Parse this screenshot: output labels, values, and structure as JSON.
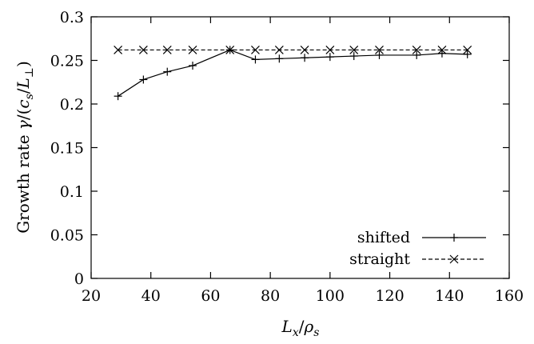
{
  "chart_data": {
    "type": "line",
    "xlabel": "L_x/ρ_s",
    "ylabel": "Growth rate γ/(c_s/L_⊥)",
    "xlim": [
      20,
      160
    ],
    "ylim": [
      0,
      0.3
    ],
    "xticks": [
      20,
      40,
      60,
      80,
      100,
      120,
      140,
      160
    ],
    "yticks": [
      0,
      0.05,
      0.1,
      0.15,
      0.2,
      0.25,
      0.3
    ],
    "xtick_labels": [
      "20",
      "40",
      "60",
      "80",
      "100",
      "120",
      "140",
      "160"
    ],
    "ytick_labels": [
      "0",
      "0.05",
      "0.1",
      "0.15",
      "0.2",
      "0.25",
      "0.3"
    ],
    "grid": false,
    "legend_position": "bottom-right",
    "series": [
      {
        "name": "shifted",
        "style": "solid",
        "marker": "plus",
        "x": [
          29,
          37.5,
          45.5,
          54,
          66.5,
          75,
          83,
          91.5,
          100,
          108,
          116.5,
          129,
          137.5,
          146
        ],
        "y": [
          0.209,
          0.228,
          0.237,
          0.244,
          0.262,
          0.251,
          0.252,
          0.253,
          0.254,
          0.255,
          0.256,
          0.256,
          0.258,
          0.257
        ]
      },
      {
        "name": "straight",
        "style": "dashed",
        "marker": "cross",
        "x": [
          29,
          37.5,
          45.5,
          54,
          66.5,
          75,
          83,
          91.5,
          100,
          108,
          116.5,
          129,
          137.5,
          146
        ],
        "y": [
          0.262,
          0.262,
          0.262,
          0.262,
          0.262,
          0.262,
          0.262,
          0.262,
          0.262,
          0.262,
          0.262,
          0.262,
          0.262,
          0.262
        ]
      }
    ]
  }
}
